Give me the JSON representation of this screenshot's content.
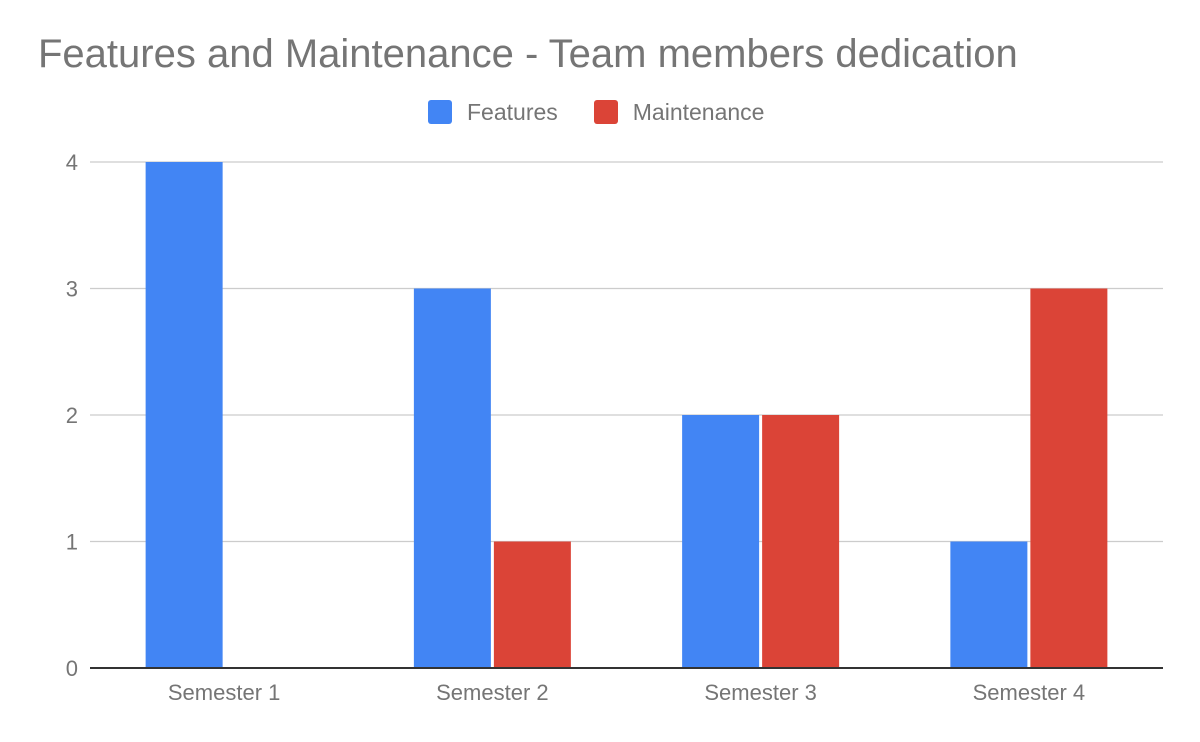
{
  "chart_data": {
    "type": "bar",
    "title": "Features and Maintenance - Team members dedication",
    "xlabel": "",
    "ylabel": "",
    "categories": [
      "Semester 1",
      "Semester 2",
      "Semester 3",
      "Semester 4"
    ],
    "series": [
      {
        "name": "Features",
        "color": "#4285F4",
        "values": [
          4,
          3,
          2,
          1
        ]
      },
      {
        "name": "Maintenance",
        "color": "#DB4437",
        "values": [
          0,
          1,
          2,
          3
        ]
      }
    ],
    "ylim": [
      0,
      4
    ],
    "yticks": [
      "0",
      "1",
      "2",
      "3",
      "4"
    ],
    "grid": true,
    "legend_position": "top-center"
  }
}
